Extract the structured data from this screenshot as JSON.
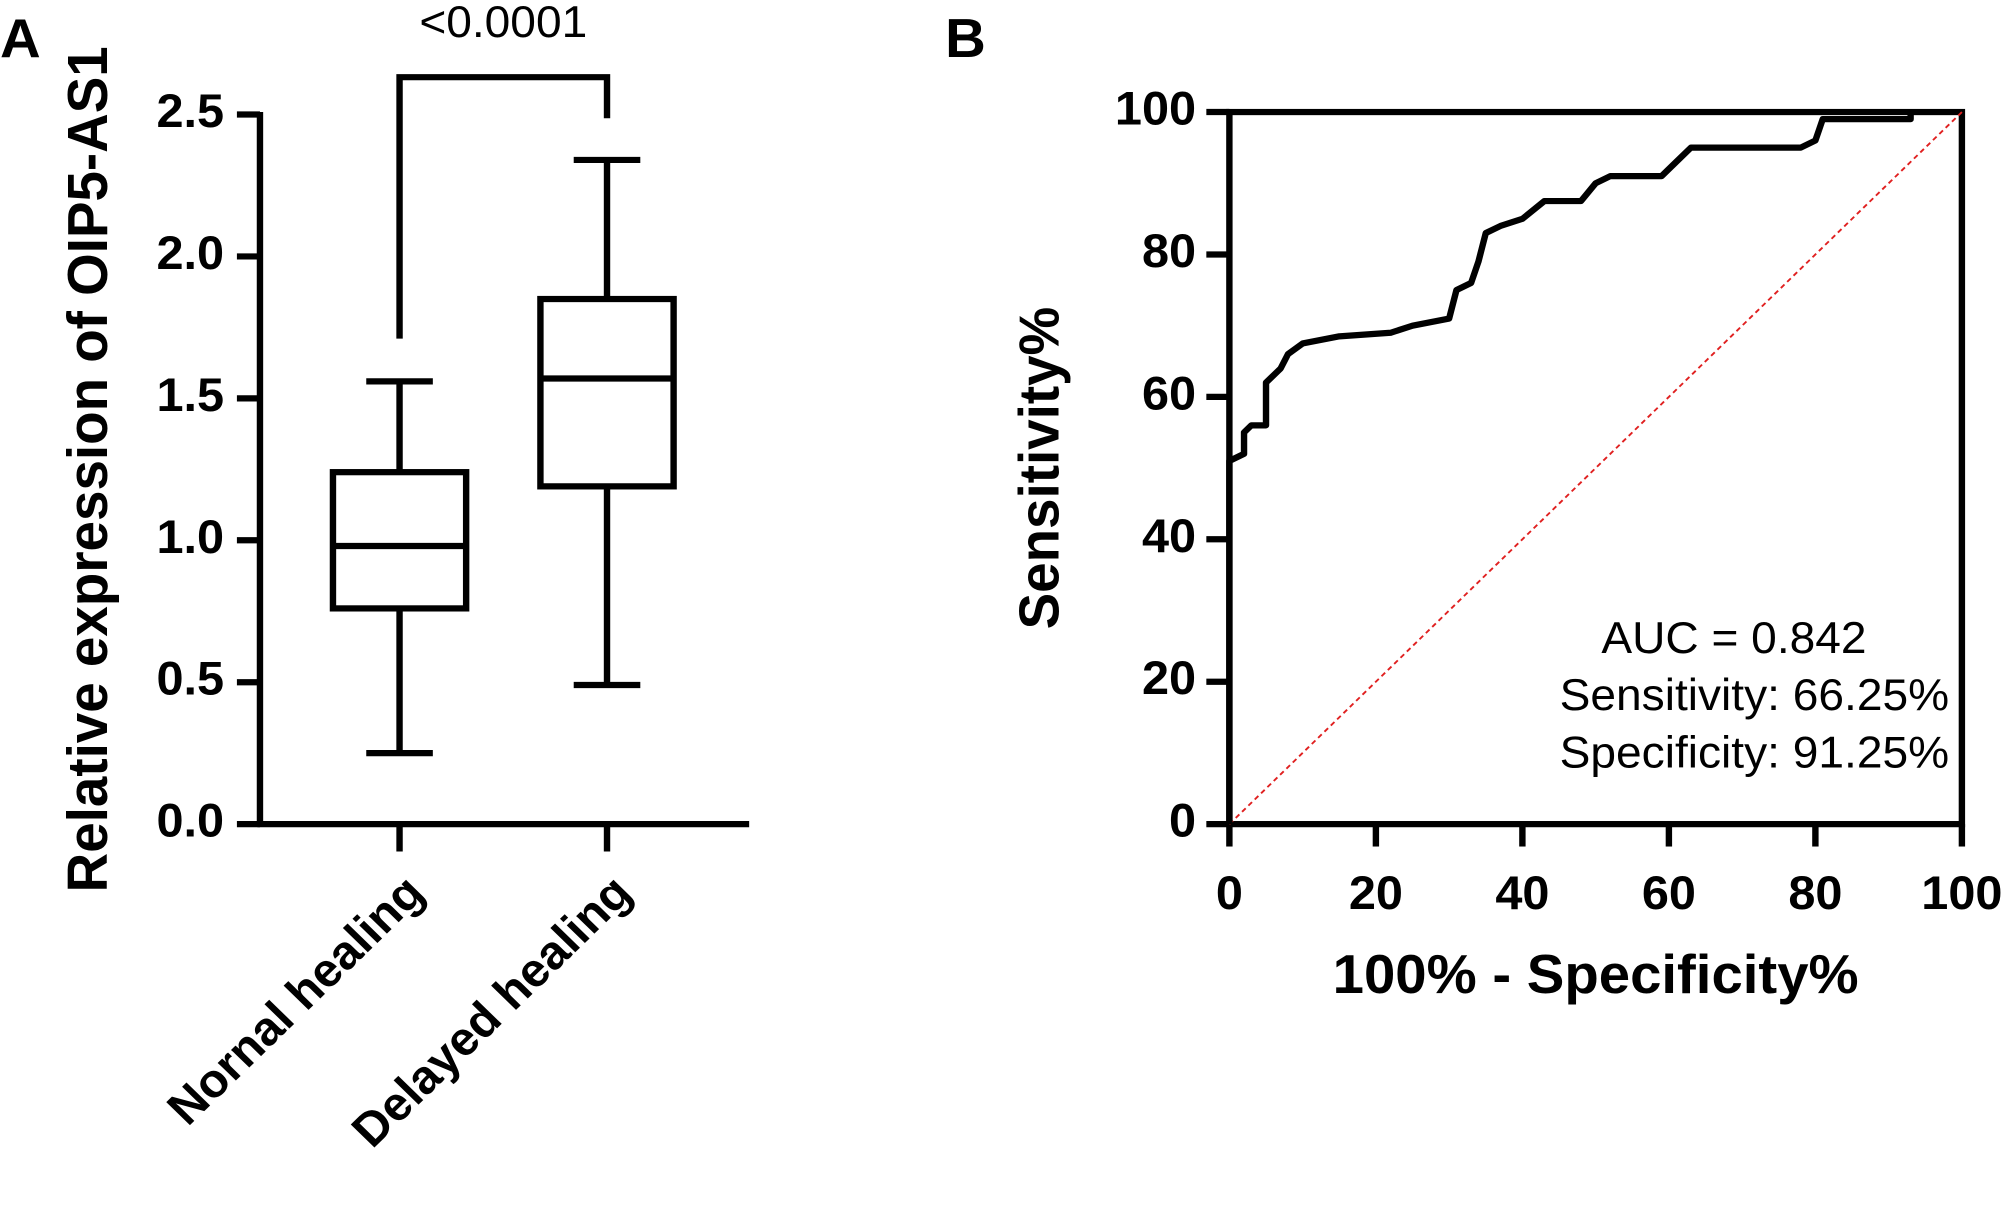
{
  "chart_data": [
    {
      "type": "box",
      "panel": "A",
      "ylabel": "Relative expression of OIP5-AS1",
      "annotation": "<0.0001",
      "categories": [
        "Nornal healing",
        "Delayed healing"
      ],
      "boxes": [
        {
          "min": 0.25,
          "q1": 0.76,
          "median": 0.98,
          "q3": 1.24,
          "max": 1.56
        },
        {
          "min": 0.49,
          "q1": 1.19,
          "median": 1.57,
          "q3": 1.85,
          "max": 2.34
        }
      ],
      "color": "#000000",
      "ylim": [
        0,
        2.5
      ],
      "yticks": [
        {
          "value": 0,
          "label": "0.0"
        },
        0.5,
        {
          "value": 1,
          "label": "1.0"
        },
        1.5,
        {
          "value": 2,
          "label": "2.0"
        },
        2.5
      ]
    },
    {
      "type": "line",
      "panel": "B",
      "xlabel": "100% - Specificity%",
      "ylabel": "Sensitivity%",
      "annotations": [
        "AUC = 0.842",
        "Sensitivity: 66.25%",
        "Specificity: 91.25%"
      ],
      "x": [
        0,
        0,
        2,
        2,
        3,
        5,
        5,
        7,
        8,
        10,
        15,
        22,
        25,
        30,
        31,
        33,
        34,
        35,
        37,
        40,
        43,
        48,
        50,
        52,
        59,
        61,
        63,
        78,
        80,
        81,
        93,
        93
      ],
      "series": [
        {
          "color": "#000000",
          "values": [
            0,
            51,
            52,
            55,
            56,
            56,
            62,
            64,
            66,
            67.5,
            68.5,
            69,
            70,
            71,
            75,
            76,
            79,
            83,
            84,
            85,
            87.5,
            87.5,
            90,
            91,
            91,
            93,
            95,
            95,
            96,
            99,
            99,
            100
          ]
        }
      ],
      "reference_color": "#e02020",
      "xlim": [
        0,
        100
      ],
      "ylim": [
        0,
        100
      ],
      "xticks": [
        0,
        20,
        40,
        60,
        80,
        100
      ],
      "yticks": [
        0,
        20,
        40,
        60,
        80,
        100
      ]
    }
  ]
}
